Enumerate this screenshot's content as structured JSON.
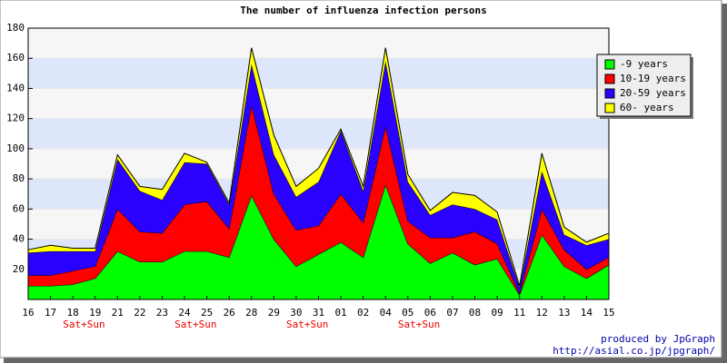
{
  "chart_data": {
    "type": "stacked_area",
    "title": "The number of influenza infection persons",
    "categories": [
      "16",
      "17",
      "18",
      "19",
      "21",
      "22",
      "23",
      "24",
      "25",
      "26",
      "28",
      "29",
      "30",
      "31",
      "01",
      "02",
      "04",
      "05",
      "06",
      "07",
      "08",
      "09",
      "11",
      "12",
      "13",
      "14",
      "15"
    ],
    "sublabels": [
      null,
      null,
      "Sat+Sun",
      null,
      null,
      null,
      null,
      "Sat+Sun",
      null,
      null,
      null,
      null,
      "Sat+Sun",
      null,
      null,
      null,
      null,
      "Sat+Sun",
      null,
      null,
      null,
      null,
      null,
      null,
      null,
      null,
      null
    ],
    "series": [
      {
        "name": "-9 years",
        "color": "#00ff00",
        "values": [
          9,
          9,
          10,
          14,
          32,
          25,
          25,
          32,
          32,
          28,
          69,
          40,
          22,
          30,
          38,
          28,
          76,
          37,
          24,
          31,
          23,
          27,
          3,
          43,
          22,
          14,
          23
        ]
      },
      {
        "name": "10-19 years",
        "color": "#ff0000",
        "values": [
          7,
          7,
          9,
          8,
          28,
          20,
          19,
          31,
          33,
          19,
          60,
          30,
          24,
          19,
          32,
          23,
          39,
          15,
          17,
          10,
          22,
          10,
          1,
          17,
          11,
          6,
          5
        ]
      },
      {
        "name": "20-59 years",
        "color": "#2a00ff",
        "values": [
          15,
          16,
          13,
          10,
          33,
          27,
          22,
          28,
          25,
          16,
          27,
          26,
          22,
          29,
          42,
          21,
          43,
          26,
          15,
          22,
          15,
          16,
          4,
          25,
          10,
          16,
          12
        ]
      },
      {
        "name": "60- years",
        "color": "#ffff00",
        "values": [
          2,
          4,
          2,
          2,
          3,
          3,
          7,
          6,
          1,
          1,
          11,
          13,
          7,
          9,
          1,
          3,
          9,
          5,
          3,
          8,
          9,
          5,
          1,
          12,
          5,
          2,
          4
        ]
      }
    ],
    "ylim": [
      0,
      180
    ],
    "yticks": [
      20,
      40,
      60,
      80,
      100,
      120,
      140,
      160,
      180
    ],
    "grid": true,
    "legend": "top-right",
    "footer": [
      "produced by JpGraph",
      "http://asial.co.jp/jpgraph/"
    ]
  }
}
